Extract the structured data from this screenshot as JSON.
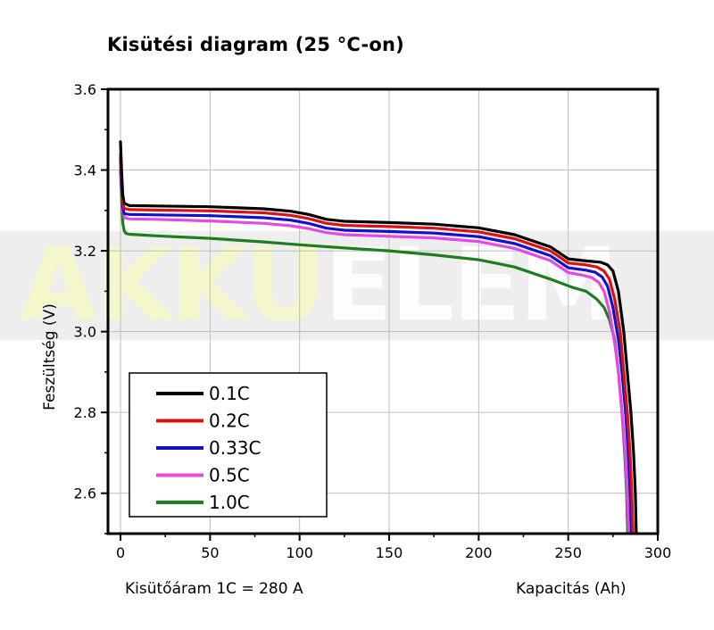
{
  "title": "Kisütési diagram (25 °C-on)",
  "note": "Kisütőáram 1C = 280 A",
  "watermark": {
    "part1": "AKKU",
    "part2": "ELEM"
  },
  "chart_data": {
    "type": "line",
    "title": "Kisütési diagram (25 °C-on)",
    "xlabel": "Kapacitás (Ah)",
    "ylabel": "Feszültség (V)",
    "xlim": [
      -7,
      300
    ],
    "ylim": [
      2.5,
      3.6
    ],
    "xticks": [
      "0",
      "50",
      "100",
      "150",
      "200",
      "250",
      "300"
    ],
    "yticks": [
      "2.6",
      "2.8",
      "3.0",
      "3.2",
      "3.4",
      "3.6"
    ],
    "grid": true,
    "legend_position": "bottom-left",
    "series": [
      {
        "name": "0.1C",
        "color": "#000000",
        "points": [
          [
            0,
            3.47
          ],
          [
            0.6,
            3.4
          ],
          [
            1.2,
            3.34
          ],
          [
            2,
            3.318
          ],
          [
            5,
            3.312
          ],
          [
            20,
            3.311
          ],
          [
            50,
            3.309
          ],
          [
            80,
            3.304
          ],
          [
            95,
            3.298
          ],
          [
            105,
            3.29
          ],
          [
            115,
            3.278
          ],
          [
            125,
            3.273
          ],
          [
            150,
            3.27
          ],
          [
            175,
            3.266
          ],
          [
            200,
            3.257
          ],
          [
            220,
            3.24
          ],
          [
            240,
            3.21
          ],
          [
            250,
            3.18
          ],
          [
            260,
            3.175
          ],
          [
            268,
            3.172
          ],
          [
            272,
            3.165
          ],
          [
            275,
            3.15
          ],
          [
            278,
            3.1
          ],
          [
            281,
            3.0
          ],
          [
            283,
            2.9
          ],
          [
            285,
            2.8
          ],
          [
            286.5,
            2.7
          ],
          [
            287.5,
            2.6
          ],
          [
            288,
            2.5
          ]
        ]
      },
      {
        "name": "0.2C",
        "color": "#dd1111",
        "points": [
          [
            0,
            3.44
          ],
          [
            0.6,
            3.38
          ],
          [
            1.2,
            3.32
          ],
          [
            2,
            3.305
          ],
          [
            5,
            3.302
          ],
          [
            20,
            3.301
          ],
          [
            50,
            3.299
          ],
          [
            80,
            3.294
          ],
          [
            95,
            3.288
          ],
          [
            105,
            3.28
          ],
          [
            115,
            3.268
          ],
          [
            125,
            3.263
          ],
          [
            150,
            3.26
          ],
          [
            175,
            3.256
          ],
          [
            200,
            3.247
          ],
          [
            220,
            3.23
          ],
          [
            240,
            3.2
          ],
          [
            250,
            3.17
          ],
          [
            260,
            3.165
          ],
          [
            266,
            3.16
          ],
          [
            270,
            3.15
          ],
          [
            273,
            3.13
          ],
          [
            276,
            3.08
          ],
          [
            279,
            3.0
          ],
          [
            281,
            2.9
          ],
          [
            283,
            2.8
          ],
          [
            284.5,
            2.7
          ],
          [
            285.5,
            2.6
          ],
          [
            286.2,
            2.5
          ]
        ]
      },
      {
        "name": "0.33C",
        "color": "#1111cc",
        "points": [
          [
            0,
            3.43
          ],
          [
            0.6,
            3.36
          ],
          [
            1.2,
            3.31
          ],
          [
            2,
            3.292
          ],
          [
            5,
            3.29
          ],
          [
            20,
            3.289
          ],
          [
            50,
            3.287
          ],
          [
            80,
            3.282
          ],
          [
            95,
            3.276
          ],
          [
            105,
            3.268
          ],
          [
            115,
            3.256
          ],
          [
            125,
            3.251
          ],
          [
            150,
            3.248
          ],
          [
            175,
            3.244
          ],
          [
            200,
            3.235
          ],
          [
            220,
            3.218
          ],
          [
            240,
            3.188
          ],
          [
            250,
            3.158
          ],
          [
            260,
            3.152
          ],
          [
            265,
            3.147
          ],
          [
            269,
            3.135
          ],
          [
            272,
            3.112
          ],
          [
            275,
            3.06
          ],
          [
            278,
            2.98
          ],
          [
            280,
            2.9
          ],
          [
            282,
            2.8
          ],
          [
            283.5,
            2.7
          ],
          [
            284.6,
            2.6
          ],
          [
            285.3,
            2.5
          ]
        ]
      },
      {
        "name": "0.5C",
        "color": "#e34ae3",
        "points": [
          [
            0,
            3.42
          ],
          [
            0.6,
            3.35
          ],
          [
            1.2,
            3.3
          ],
          [
            2,
            3.282
          ],
          [
            5,
            3.279
          ],
          [
            20,
            3.278
          ],
          [
            50,
            3.274
          ],
          [
            80,
            3.268
          ],
          [
            95,
            3.262
          ],
          [
            105,
            3.255
          ],
          [
            115,
            3.245
          ],
          [
            125,
            3.24
          ],
          [
            150,
            3.236
          ],
          [
            175,
            3.232
          ],
          [
            200,
            3.223
          ],
          [
            220,
            3.206
          ],
          [
            240,
            3.176
          ],
          [
            250,
            3.146
          ],
          [
            258,
            3.14
          ],
          [
            263,
            3.134
          ],
          [
            267,
            3.122
          ],
          [
            270,
            3.1
          ],
          [
            273,
            3.05
          ],
          [
            276,
            2.97
          ],
          [
            278,
            2.9
          ],
          [
            280,
            2.8
          ],
          [
            281.8,
            2.7
          ],
          [
            283,
            2.6
          ],
          [
            283.8,
            2.5
          ]
        ]
      },
      {
        "name": "1.0C",
        "color": "#1e7d1e",
        "points": [
          [
            0,
            3.4
          ],
          [
            0.6,
            3.33
          ],
          [
            1.2,
            3.27
          ],
          [
            2,
            3.25
          ],
          [
            3,
            3.243
          ],
          [
            5,
            3.241
          ],
          [
            20,
            3.237
          ],
          [
            50,
            3.231
          ],
          [
            80,
            3.222
          ],
          [
            100,
            3.215
          ],
          [
            125,
            3.207
          ],
          [
            150,
            3.2
          ],
          [
            175,
            3.19
          ],
          [
            200,
            3.178
          ],
          [
            220,
            3.16
          ],
          [
            240,
            3.13
          ],
          [
            252,
            3.11
          ],
          [
            260,
            3.1
          ],
          [
            266,
            3.08
          ],
          [
            270,
            3.06
          ],
          [
            273,
            3.03
          ],
          [
            276,
            2.98
          ],
          [
            278,
            2.9
          ],
          [
            280,
            2.8
          ],
          [
            281.5,
            2.7
          ],
          [
            282.6,
            2.6
          ],
          [
            283.2,
            2.5
          ]
        ]
      }
    ]
  }
}
